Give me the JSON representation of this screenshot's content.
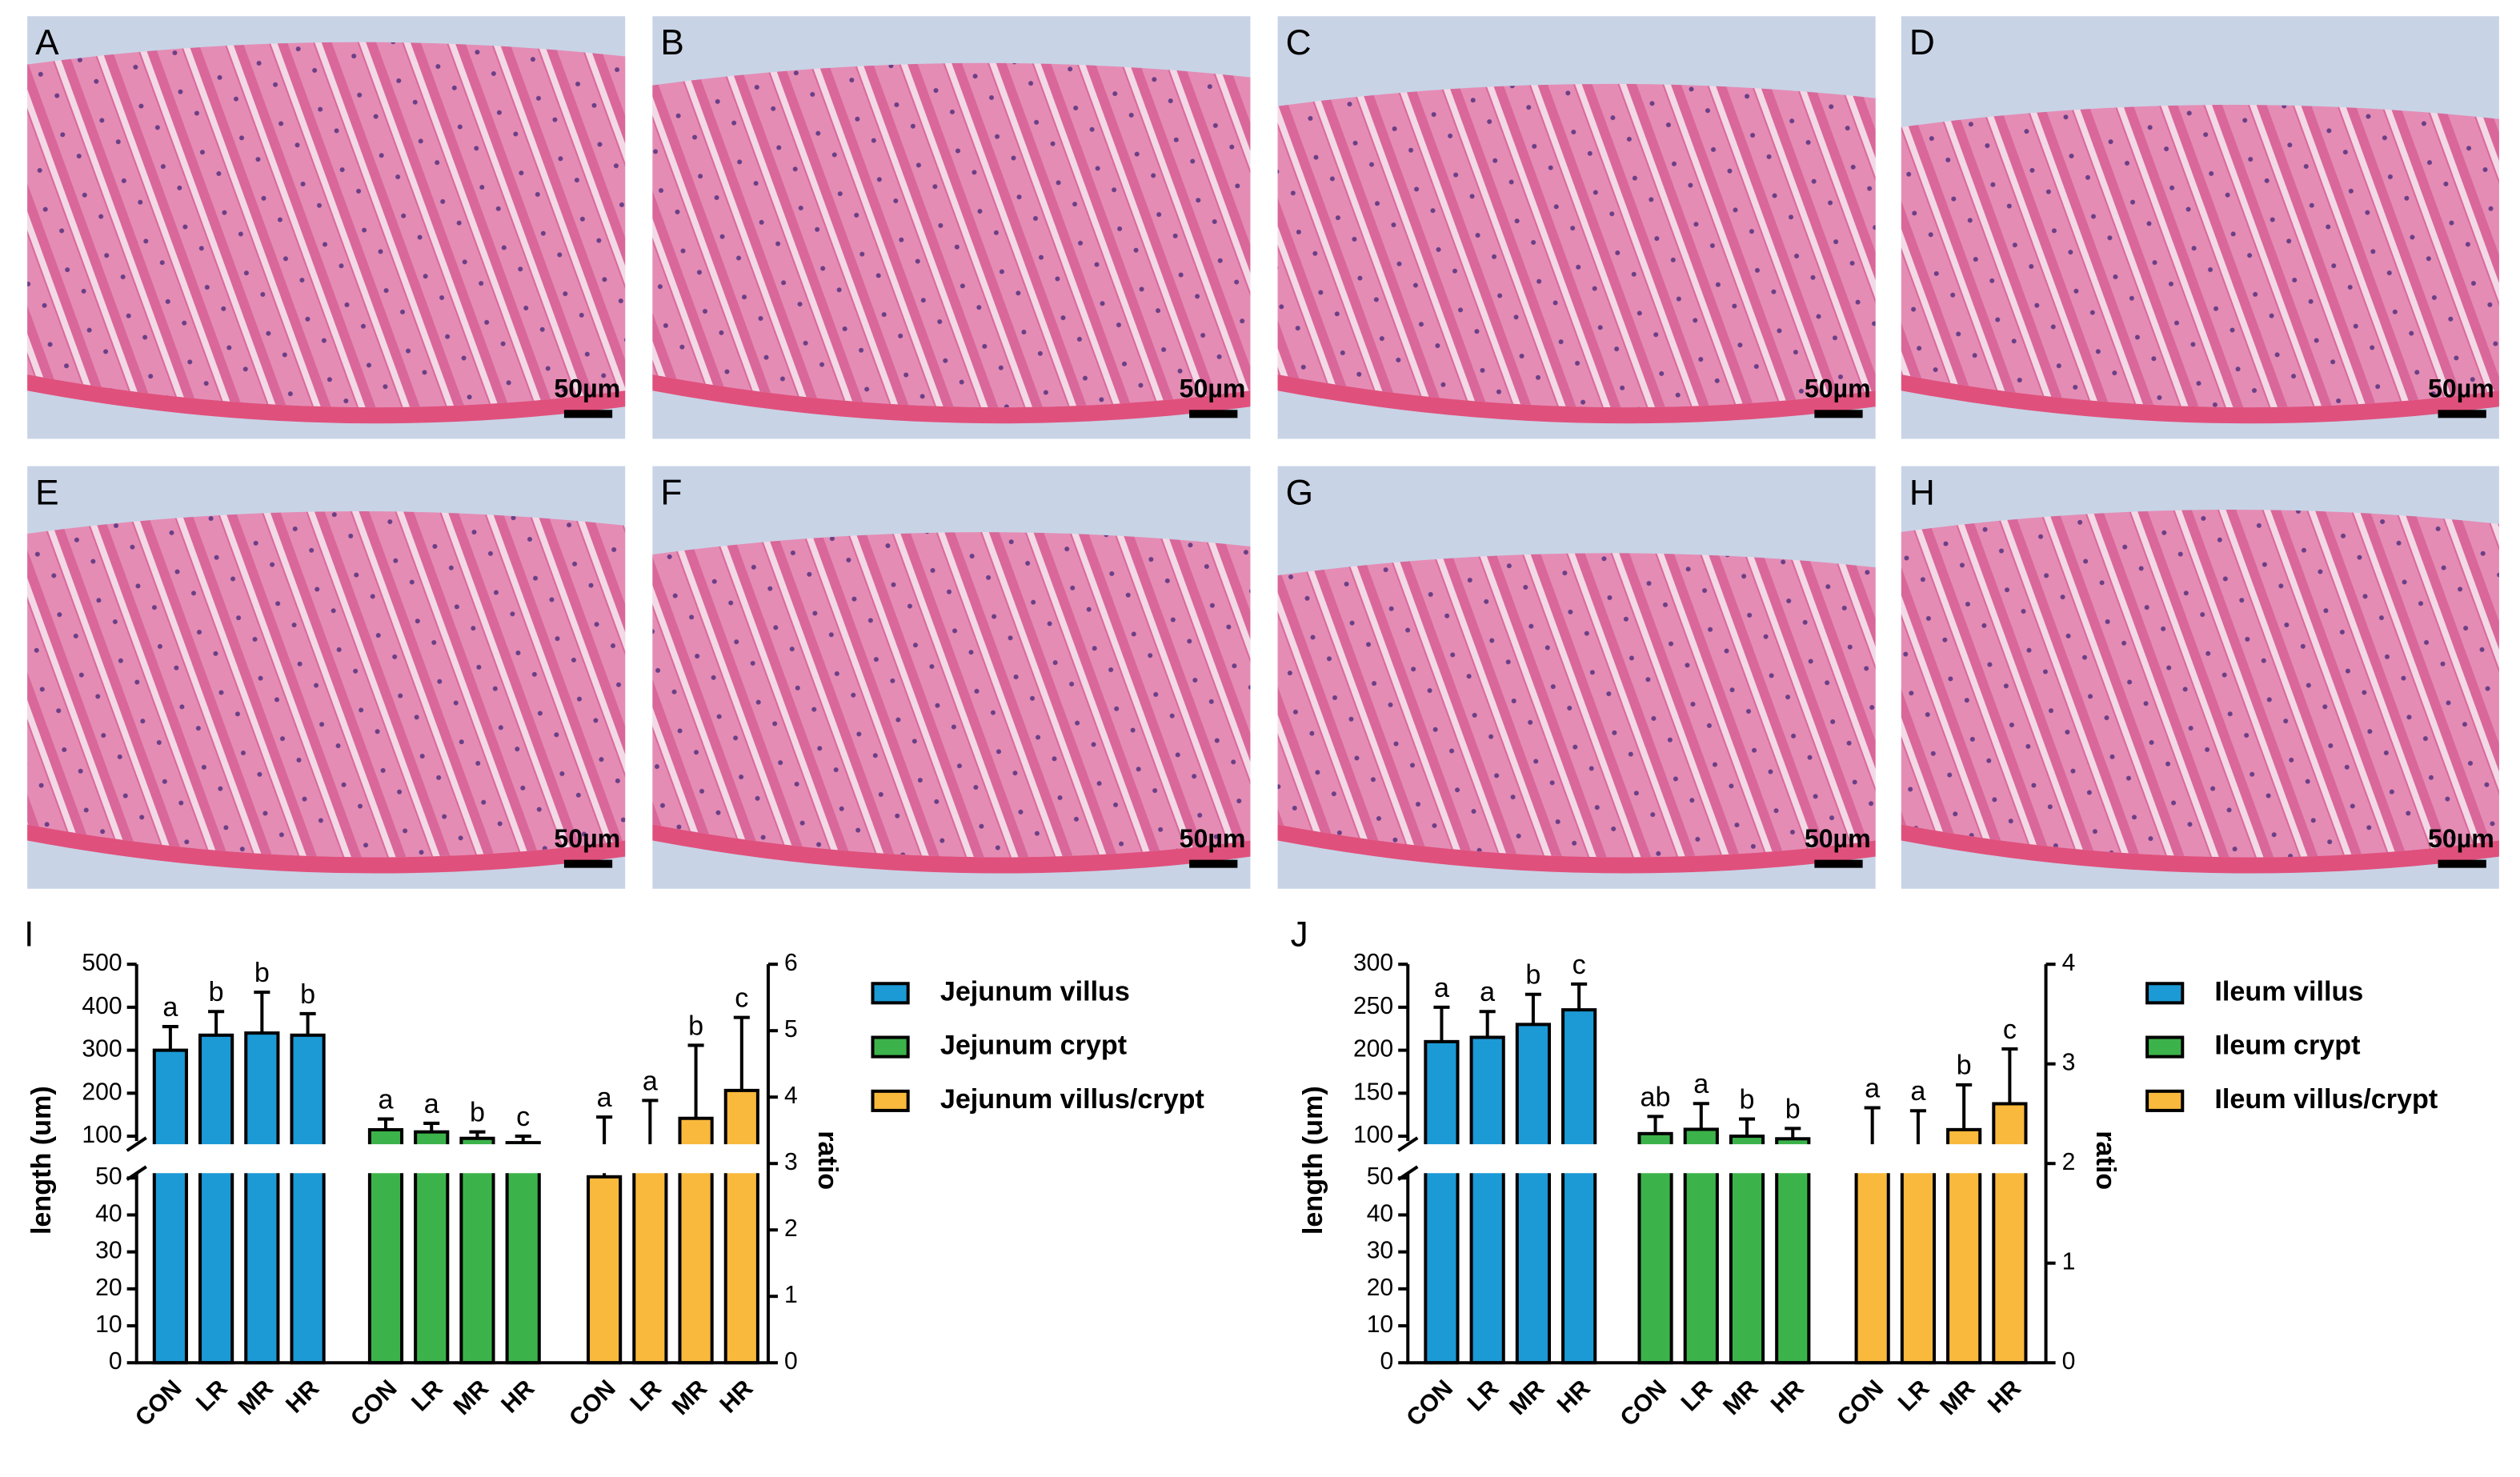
{
  "micrographs": [
    {
      "label": "A",
      "scale": "50µm"
    },
    {
      "label": "B",
      "scale": "50µm"
    },
    {
      "label": "C",
      "scale": "50µm"
    },
    {
      "label": "D",
      "scale": "50µm"
    },
    {
      "label": "E",
      "scale": "50µm"
    },
    {
      "label": "F",
      "scale": "50µm"
    },
    {
      "label": "G",
      "scale": "50µm"
    },
    {
      "label": "H",
      "scale": "50µm"
    }
  ],
  "chart_data": [
    {
      "type": "bar",
      "panel": "I",
      "ylabel": "length (um)",
      "y2label": "ratio",
      "categories": [
        "CON",
        "LR",
        "MR",
        "HR"
      ],
      "ylim": [
        0,
        500
      ],
      "ybreak": [
        50,
        100
      ],
      "yticks": [
        0,
        10,
        20,
        30,
        40,
        50,
        100,
        200,
        300,
        400,
        500
      ],
      "y2lim": [
        0,
        6
      ],
      "y2ticks": [
        0,
        1,
        2,
        3,
        4,
        5,
        6
      ],
      "series": [
        {
          "name": "Jejunum villus",
          "color": "#1b9ad6",
          "values": [
            300,
            335,
            340,
            335
          ],
          "errors": [
            55,
            55,
            95,
            50
          ],
          "labels": [
            "a",
            "b",
            "b",
            "b"
          ]
        },
        {
          "name": "Jejunum crypt",
          "color": "#3cb34a",
          "values": [
            115,
            110,
            95,
            85
          ],
          "errors": [
            25,
            20,
            15,
            15
          ],
          "labels": [
            "a",
            "a",
            "b",
            "c"
          ]
        },
        {
          "name": "Jejunum villus/crypt",
          "color": "#f9b93c",
          "axis": "y2",
          "values": [
            2.8,
            3.15,
            3.68,
            4.1
          ],
          "errors": [
            0.9,
            0.8,
            1.1,
            1.1
          ],
          "labels": [
            "a",
            "a",
            "b",
            "c"
          ]
        }
      ]
    },
    {
      "type": "bar",
      "panel": "J",
      "ylabel": "length (um)",
      "y2label": "ratio",
      "categories": [
        "CON",
        "LR",
        "MR",
        "HR"
      ],
      "ylim": [
        0,
        300
      ],
      "ybreak": [
        50,
        100
      ],
      "yticks": [
        0,
        10,
        20,
        30,
        40,
        50,
        100,
        150,
        200,
        250,
        300
      ],
      "y2lim": [
        0,
        4
      ],
      "y2ticks": [
        0,
        1,
        2,
        3,
        4
      ],
      "series": [
        {
          "name": "Ileum villus",
          "color": "#1b9ad6",
          "values": [
            210,
            215,
            230,
            247
          ],
          "errors": [
            40,
            30,
            35,
            30
          ],
          "labels": [
            "a",
            "a",
            "b",
            "c"
          ]
        },
        {
          "name": "Ileum crypt",
          "color": "#3cb34a",
          "values": [
            103,
            108,
            100,
            97
          ],
          "errors": [
            20,
            30,
            20,
            12
          ],
          "labels": [
            "ab",
            "a",
            "b",
            "b"
          ]
        },
        {
          "name": "Ileum villus/crypt",
          "color": "#f9b93c",
          "axis": "y2",
          "values": [
            2.06,
            2.03,
            2.34,
            2.6
          ],
          "errors": [
            0.5,
            0.5,
            0.45,
            0.55
          ],
          "labels": [
            "a",
            "a",
            "b",
            "c"
          ]
        }
      ]
    }
  ]
}
